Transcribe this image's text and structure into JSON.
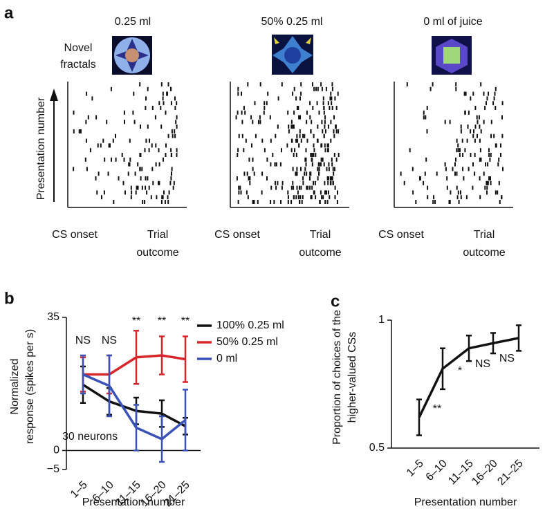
{
  "panel_a": {
    "letter": "a",
    "titles": [
      "0.25 ml",
      "50% 0.25 ml",
      "0 ml of juice"
    ],
    "image_label": [
      "Novel",
      "fractals"
    ],
    "ylabel": "Presentation number",
    "x_start": "CS onset",
    "x_end": [
      "Trial",
      "outcome"
    ]
  },
  "chart_data": [
    {
      "type": "line",
      "letter": "b",
      "ylabel": [
        "Normalized",
        "response (spikes per s)"
      ],
      "xlabel": "Presentation number",
      "categories": [
        "1–5",
        "6–10",
        "11–15",
        "16–20",
        "21–25"
      ],
      "ylim": [
        -5,
        35
      ],
      "yticks": [
        {
          "value": -5,
          "label": "−5"
        },
        0,
        35
      ],
      "annotations": [
        "NS",
        "NS",
        "**",
        "**",
        "**"
      ],
      "note": "30 neurons",
      "legend": "top-right",
      "series": [
        {
          "name": "100% 0.25 ml",
          "color": "#111111",
          "values": [
            17.3,
            12.9,
            10.4,
            9.7,
            6.4
          ],
          "errors": [
            4.8,
            3.5,
            3.5,
            3.5,
            2.2
          ]
        },
        {
          "name": "50% 0.25 ml",
          "color": "#d8252a",
          "values": [
            20,
            20,
            24.5,
            25,
            24
          ],
          "errors": [
            4.5,
            5,
            7,
            5,
            6
          ]
        },
        {
          "name": "0 ml",
          "color": "#3a52b8",
          "values": [
            20,
            17,
            6,
            3,
            8
          ],
          "errors": [
            5,
            8,
            6,
            6,
            8
          ]
        }
      ]
    },
    {
      "type": "line",
      "letter": "c",
      "ylabel": [
        "Proportion of choices of the",
        "higher-valued CSs"
      ],
      "xlabel": "Presentation number",
      "categories": [
        "1–5",
        "6–10",
        "11–15",
        "16–20",
        "21–25"
      ],
      "ylim": [
        0.5,
        1
      ],
      "yticks": [
        0.5,
        1
      ],
      "annotations": [
        "**",
        "*",
        "NS",
        "NS"
      ],
      "series": [
        {
          "name": "Proportion",
          "color": "#111111",
          "values": [
            0.62,
            0.81,
            0.89,
            0.91,
            0.93
          ],
          "errors": [
            0.07,
            0.08,
            0.05,
            0.04,
            0.05
          ]
        }
      ]
    }
  ]
}
